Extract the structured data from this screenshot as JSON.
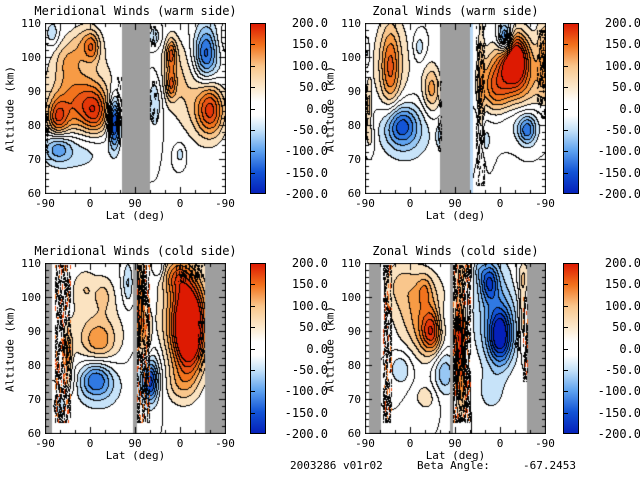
{
  "figure": {
    "background": "#ffffff",
    "footer": {
      "dataset_id": "2003286 v01r02",
      "beta_angle_label": "Beta Angle:",
      "beta_angle_value": "-67.2453"
    }
  },
  "colorbar": {
    "min": -200,
    "max": 200,
    "tick_labels": [
      "200.0",
      "150.0",
      "100.0",
      "50.0",
      "0.0",
      "-50.0",
      "-100.0",
      "-150.0",
      "-200.0"
    ],
    "gradient": [
      {
        "c": "#dd1a02",
        "p": 0
      },
      {
        "c": "#f2731d",
        "p": 12.5
      },
      {
        "c": "#f9c68c",
        "p": 25
      },
      {
        "c": "#fce9cd",
        "p": 37.5
      },
      {
        "c": "#ffffff",
        "p": 46
      },
      {
        "c": "#ffffff",
        "p": 54
      },
      {
        "c": "#c7e3f9",
        "p": 62.5
      },
      {
        "c": "#5ea2ef",
        "p": 75
      },
      {
        "c": "#1254d6",
        "p": 87.5
      },
      {
        "c": "#0520ba",
        "p": 100
      }
    ]
  },
  "palette": {
    "positive_bands": [
      "#ffffff",
      "#fbe3c1",
      "#f9c68c",
      "#f79b45",
      "#f2731d",
      "#ea5414",
      "#e43608",
      "#dd1a02"
    ],
    "negative_bands": [
      "#ffffff",
      "#c7e3f9",
      "#97c7f4",
      "#5ea2ef",
      "#3079e2",
      "#1254d6",
      "#0838c8",
      "#0520ba"
    ],
    "gray_band": "#9e9e9e",
    "contour_line": "#000000",
    "stipple_accents": [
      "#e8450a",
      "#f4731c"
    ]
  },
  "chart_data": [
    {
      "type": "filled_contour",
      "title": "Meridional Winds (warm side)",
      "xlabel": "Lat (deg)",
      "ylabel": "Altitude (km)",
      "x_tick_labels": [
        "-90",
        "0",
        "90",
        "0",
        "-90"
      ],
      "y_ticks": [
        110,
        100,
        90,
        80,
        70,
        60
      ],
      "y_range": [
        60,
        110
      ],
      "contour_interval": 25,
      "value_range": [
        -200,
        200
      ],
      "gray_bands": [
        [
          0.428,
          0.583
        ]
      ],
      "stripes": [],
      "stipple_bands": [
        {
          "x": [
            0,
            0.015
          ],
          "alt": [
            72,
            86
          ],
          "type": "dark"
        },
        {
          "x": [
            0.4,
            0.424
          ],
          "alt": [
            74,
            94
          ],
          "type": "dark"
        },
        {
          "x": [
            0.585,
            0.615
          ],
          "alt": [
            103,
            109
          ],
          "type": "dark"
        },
        {
          "x": [
            0.585,
            0.62
          ],
          "alt": [
            81,
            93
          ],
          "type": "dark"
        }
      ],
      "features": [
        {
          "xf": 0.04,
          "alt": 107,
          "v": -50,
          "sx": 0.025,
          "sy": 2.5
        },
        {
          "xf": 0.22,
          "alt": 104,
          "v": 55,
          "sx": 0.06,
          "sy": 4
        },
        {
          "xf": 0.26,
          "alt": 103,
          "v": 70,
          "sx": 0.03,
          "sy": 3
        },
        {
          "xf": 0.12,
          "alt": 99,
          "v": 45,
          "sx": 0.05,
          "sy": 4
        },
        {
          "xf": 0.2,
          "alt": 90,
          "v": 45,
          "sx": 0.17,
          "sy": 9
        },
        {
          "xf": 0.07,
          "alt": 82,
          "v": 115,
          "sx": 0.04,
          "sy": 4
        },
        {
          "xf": 0.28,
          "alt": 84,
          "v": 105,
          "sx": 0.05,
          "sy": 4.5
        },
        {
          "xf": 0.18,
          "alt": 86,
          "v": 80,
          "sx": 0.08,
          "sy": 6
        },
        {
          "xf": 0.385,
          "alt": 81,
          "v": -175,
          "sx": 0.022,
          "sy": 5
        },
        {
          "xf": 0.07,
          "alt": 73.5,
          "v": -75,
          "sx": 0.05,
          "sy": 3
        },
        {
          "xf": 0.17,
          "alt": 72.5,
          "v": -45,
          "sx": 0.13,
          "sy": 4.5
        },
        {
          "xf": 0.61,
          "alt": 106,
          "v": -45,
          "sx": 0.03,
          "sy": 2.5
        },
        {
          "xf": 0.61,
          "alt": 87,
          "v": -55,
          "sx": 0.03,
          "sy": 6
        },
        {
          "xf": 0.7,
          "alt": 101,
          "v": 95,
          "sx": 0.02,
          "sy": 3
        },
        {
          "xf": 0.7,
          "alt": 92,
          "v": 85,
          "sx": 0.02,
          "sy": 3
        },
        {
          "xf": 0.72,
          "alt": 96,
          "v": 50,
          "sx": 0.07,
          "sy": 8
        },
        {
          "xf": 0.89,
          "alt": 101,
          "v": -95,
          "sx": 0.04,
          "sy": 5
        },
        {
          "xf": 0.92,
          "alt": 100,
          "v": -50,
          "sx": 0.07,
          "sy": 8
        },
        {
          "xf": 1.0,
          "alt": 105,
          "v": 35,
          "sx": 0.04,
          "sy": 4
        },
        {
          "xf": 0.92,
          "alt": 84.5,
          "v": 115,
          "sx": 0.05,
          "sy": 5
        },
        {
          "xf": 0.88,
          "alt": 86,
          "v": 60,
          "sx": 0.09,
          "sy": 8
        },
        {
          "xf": 0.75,
          "alt": 71.5,
          "v": -40,
          "sx": 0.02,
          "sy": 2
        }
      ]
    },
    {
      "type": "filled_contour",
      "title": "Zonal Winds (warm side)",
      "xlabel": "Lat (deg)",
      "ylabel": "Altitude (km)",
      "x_tick_labels": [
        "-90",
        "0",
        "90",
        "0",
        "-90"
      ],
      "y_ticks": [
        110,
        100,
        90,
        80,
        70,
        60
      ],
      "y_range": [
        60,
        110
      ],
      "contour_interval": 25,
      "value_range": [
        -200,
        200
      ],
      "gray_bands": [
        [
          0.417,
          0.583
        ]
      ],
      "stripes": [
        {
          "x": [
            0.583,
            0.602
          ],
          "color": "#b9d9f8"
        }
      ],
      "stipple_bands": [
        {
          "x": [
            0,
            0.012
          ],
          "alt": [
            76,
            96
          ],
          "type": "dark"
        },
        {
          "x": [
            0.405,
            0.42
          ],
          "alt": [
            72,
            93
          ],
          "type": "dark"
        },
        {
          "x": [
            0.617,
            0.66
          ],
          "alt": [
            62,
            109
          ],
          "type": "dark"
        },
        {
          "x": [
            0.74,
            0.81
          ],
          "alt": [
            103.5,
            109.5
          ],
          "type": "dark"
        },
        {
          "x": [
            0.955,
            0.995
          ],
          "alt": [
            82,
            108
          ],
          "type": "dark"
        }
      ],
      "features": [
        {
          "xf": 0.14,
          "alt": 97,
          "v": 90,
          "sx": 0.035,
          "sy": 8
        },
        {
          "xf": 0.15,
          "alt": 98,
          "v": 45,
          "sx": 0.09,
          "sy": 11
        },
        {
          "xf": 0.3,
          "alt": 103,
          "v": -45,
          "sx": 0.025,
          "sy": 3
        },
        {
          "xf": 0.37,
          "alt": 90.5,
          "v": 85,
          "sx": 0.035,
          "sy": 5
        },
        {
          "xf": 0.2,
          "alt": 80,
          "v": -100,
          "sx": 0.06,
          "sy": 4
        },
        {
          "xf": 0.22,
          "alt": 78,
          "v": -55,
          "sx": 0.11,
          "sy": 6.5
        },
        {
          "xf": 0.42,
          "alt": 77,
          "v": -55,
          "sx": 0.015,
          "sy": 2.5
        },
        {
          "xf": 0.02,
          "alt": 85,
          "v": 55,
          "sx": 0.012,
          "sy": 5
        },
        {
          "xf": 0.01,
          "alt": 101,
          "v": -40,
          "sx": 0.012,
          "sy": 3
        },
        {
          "xf": 0.03,
          "alt": 76,
          "v": 35,
          "sx": 0.02,
          "sy": 3
        },
        {
          "xf": 0.778,
          "alt": 105.5,
          "v": -160,
          "sx": 0.028,
          "sy": 3.2
        },
        {
          "xf": 0.83,
          "alt": 99.5,
          "v": 195,
          "sx": 0.05,
          "sy": 5
        },
        {
          "xf": 0.72,
          "alt": 91,
          "v": 100,
          "sx": 0.06,
          "sy": 6.5
        },
        {
          "xf": 0.85,
          "alt": 93,
          "v": 95,
          "sx": 0.1,
          "sy": 8.5
        },
        {
          "xf": 1.0,
          "alt": 100,
          "v": 75,
          "sx": 0.03,
          "sy": 9
        },
        {
          "xf": 0.82,
          "alt": 82,
          "v": -55,
          "sx": 0.14,
          "sy": 4.5
        },
        {
          "xf": 0.9,
          "alt": 78.5,
          "v": -105,
          "sx": 0.035,
          "sy": 3
        },
        {
          "xf": 0.645,
          "alt": 90,
          "v": 50,
          "sx": 0.012,
          "sy": 18
        },
        {
          "xf": 0.66,
          "alt": 75,
          "v": -35,
          "sx": 0.03,
          "sy": 3
        }
      ]
    },
    {
      "type": "filled_contour",
      "title": "Meridional Winds (cold side)",
      "xlabel": "Lat (deg)",
      "ylabel": "Altitude (km)",
      "x_tick_labels": [
        "-90",
        "0",
        "90",
        "0",
        "-90"
      ],
      "y_ticks": [
        110,
        100,
        90,
        80,
        70,
        60
      ],
      "y_range": [
        60,
        110
      ],
      "contour_interval": 25,
      "value_range": [
        -200,
        200
      ],
      "gray_bands": [
        [
          0,
          0.039
        ],
        [
          0.489,
          0.511
        ],
        [
          0.889,
          1
        ]
      ],
      "stripes": [],
      "stipple_bands": [
        {
          "x": [
            0.056,
            0.139
          ],
          "alt": [
            63,
            109.5
          ],
          "type": "mix"
        },
        {
          "x": [
            0.511,
            0.578
          ],
          "alt": [
            63,
            109.5
          ],
          "type": "mix"
        },
        {
          "x": [
            0.73,
            0.885
          ],
          "alt": [
            104.5,
            109.5
          ],
          "type": "dark"
        },
        {
          "x": [
            0.85,
            0.885
          ],
          "alt": [
            78,
            93
          ],
          "type": "dark"
        }
      ],
      "features": [
        {
          "xf": 0.22,
          "alt": 103,
          "v": 40,
          "sx": 0.05,
          "sy": 4
        },
        {
          "xf": 0.33,
          "alt": 101,
          "v": 40,
          "sx": 0.04,
          "sy": 4
        },
        {
          "xf": 0.28,
          "alt": 89,
          "v": 45,
          "sx": 0.13,
          "sy": 8
        },
        {
          "xf": 0.3,
          "alt": 87,
          "v": 55,
          "sx": 0.06,
          "sy": 4
        },
        {
          "xf": 0.13,
          "alt": 84,
          "v": 85,
          "sx": 0.015,
          "sy": 4
        },
        {
          "xf": 0.13,
          "alt": 75,
          "v": 40,
          "sx": 0.03,
          "sy": 3
        },
        {
          "xf": 0.28,
          "alt": 76,
          "v": -90,
          "sx": 0.06,
          "sy": 3.5
        },
        {
          "xf": 0.3,
          "alt": 74,
          "v": -50,
          "sx": 0.1,
          "sy": 5.5
        },
        {
          "xf": 0.46,
          "alt": 104,
          "v": -55,
          "sx": 0.02,
          "sy": 4.5
        },
        {
          "xf": 0.585,
          "alt": 75,
          "v": -115,
          "sx": 0.03,
          "sy": 4
        },
        {
          "xf": 0.57,
          "alt": 77,
          "v": -55,
          "sx": 0.055,
          "sy": 6
        },
        {
          "xf": 0.53,
          "alt": 98,
          "v": 95,
          "sx": 0.012,
          "sy": 10
        },
        {
          "xf": 0.56,
          "alt": 88,
          "v": 70,
          "sx": 0.02,
          "sy": 6
        },
        {
          "xf": 0.8,
          "alt": 91,
          "v": 210,
          "sx": 0.055,
          "sy": 8.5
        },
        {
          "xf": 0.78,
          "alt": 93,
          "v": 120,
          "sx": 0.09,
          "sy": 11
        },
        {
          "xf": 0.73,
          "alt": 106,
          "v": 80,
          "sx": 0.05,
          "sy": 3.5
        },
        {
          "xf": 0.75,
          "alt": 74,
          "v": 40,
          "sx": 0.06,
          "sy": 4
        },
        {
          "xf": 0.63,
          "alt": 108.5,
          "v": -40,
          "sx": 0.02,
          "sy": 2
        },
        {
          "xf": 0.08,
          "alt": 68,
          "v": -40,
          "sx": 0.03,
          "sy": 3
        }
      ]
    },
    {
      "type": "filled_contour",
      "title": "Zonal Winds (cold side)",
      "xlabel": "Lat (deg)",
      "ylabel": "Altitude (km)",
      "x_tick_labels": [
        "-90",
        "0",
        "90",
        "0",
        "-90"
      ],
      "y_ticks": [
        110,
        100,
        90,
        80,
        70,
        60
      ],
      "y_range": [
        60,
        110
      ],
      "contour_interval": 25,
      "value_range": [
        -200,
        200
      ],
      "gray_bands": [
        [
          0.022,
          0.089
        ],
        [
          0.472,
          0.489
        ],
        [
          0.9,
          1
        ]
      ],
      "stripes": [],
      "stipple_bands": [
        {
          "x": [
            0.1,
            0.145
          ],
          "alt": [
            63,
            109.5
          ],
          "type": "mix"
        },
        {
          "x": [
            0.49,
            0.585
          ],
          "alt": [
            63,
            109.5
          ],
          "type": "mix"
        },
        {
          "x": [
            0.82,
            0.855
          ],
          "alt": [
            84,
            93
          ],
          "type": "dark"
        },
        {
          "x": [
            0.875,
            0.9
          ],
          "alt": [
            75,
            100
          ],
          "type": "mix"
        }
      ],
      "features": [
        {
          "xf": 0.2,
          "alt": 104,
          "v": 40,
          "sx": 0.07,
          "sy": 5
        },
        {
          "xf": 0.33,
          "alt": 102.5,
          "v": 45,
          "sx": 0.03,
          "sy": 3
        },
        {
          "xf": 0.37,
          "alt": 89.5,
          "v": 105,
          "sx": 0.04,
          "sy": 4
        },
        {
          "xf": 0.35,
          "alt": 92,
          "v": 60,
          "sx": 0.09,
          "sy": 8
        },
        {
          "xf": 0.3,
          "alt": 97,
          "v": 40,
          "sx": 0.12,
          "sy": 8
        },
        {
          "xf": 0.2,
          "alt": 79,
          "v": -50,
          "sx": 0.045,
          "sy": 3.5
        },
        {
          "xf": 0.44,
          "alt": 78,
          "v": -75,
          "sx": 0.045,
          "sy": 5
        },
        {
          "xf": 0.43,
          "alt": 93,
          "v": -45,
          "sx": 0.03,
          "sy": 5
        },
        {
          "xf": 0.34,
          "alt": 70.5,
          "v": 38,
          "sx": 0.05,
          "sy": 3
        },
        {
          "xf": 0.525,
          "alt": 86,
          "v": 170,
          "sx": 0.012,
          "sy": 5
        },
        {
          "xf": 0.53,
          "alt": 90,
          "v": 75,
          "sx": 0.02,
          "sy": 14
        },
        {
          "xf": 0.54,
          "alt": 72,
          "v": 60,
          "sx": 0.02,
          "sy": 5
        },
        {
          "xf": 0.75,
          "alt": 88.5,
          "v": -165,
          "sx": 0.045,
          "sy": 5.5
        },
        {
          "xf": 0.69,
          "alt": 104.5,
          "v": -115,
          "sx": 0.035,
          "sy": 4
        },
        {
          "xf": 0.73,
          "alt": 95,
          "v": -70,
          "sx": 0.095,
          "sy": 11
        },
        {
          "xf": 0.7,
          "alt": 72,
          "v": -35,
          "sx": 0.05,
          "sy": 4
        },
        {
          "xf": 0.88,
          "alt": 106,
          "v": 45,
          "sx": 0.03,
          "sy": 3.5
        },
        {
          "xf": 0.875,
          "alt": 95,
          "v": 60,
          "sx": 0.015,
          "sy": 8
        },
        {
          "xf": 0.56,
          "alt": 107.5,
          "v": 38,
          "sx": 0.035,
          "sy": 2.5
        },
        {
          "xf": 0.63,
          "alt": 108,
          "v": -40,
          "sx": 0.025,
          "sy": 2.5
        }
      ]
    }
  ]
}
